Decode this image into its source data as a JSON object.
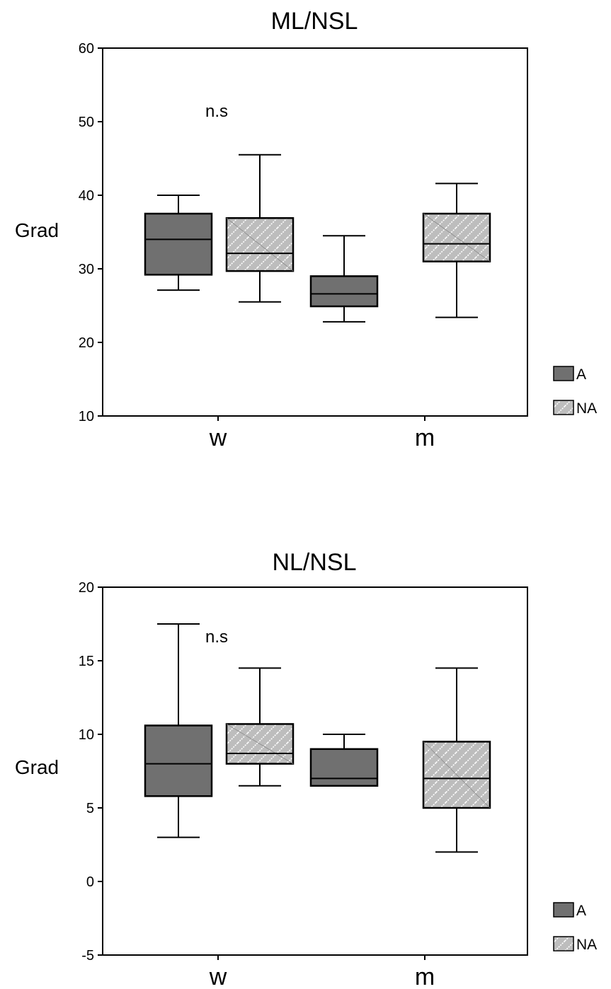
{
  "chart_data": [
    {
      "type": "box",
      "title": "ML/NSL",
      "ylabel": "Grad",
      "ylim": [
        10,
        60
      ],
      "yticks": [
        10,
        20,
        30,
        40,
        50,
        60
      ],
      "categories": [
        "w",
        "m"
      ],
      "annotation": "n.s",
      "legend": {
        "placement": "bottom-right",
        "entries": [
          "A",
          "NA"
        ]
      },
      "colors": {
        "A": "#707070",
        "NA": "#bdbdbd"
      },
      "series": [
        {
          "name": "A",
          "boxes": [
            {
              "min": 27.1,
              "q1": 29.2,
              "median": 34.0,
              "q3": 37.5,
              "max": 40.0
            },
            {
              "min": 22.8,
              "q1": 24.9,
              "median": 26.6,
              "q3": 29.0,
              "max": 34.5
            }
          ]
        },
        {
          "name": "NA",
          "boxes": [
            {
              "min": 25.5,
              "q1": 29.7,
              "median": 32.1,
              "q3": 36.9,
              "max": 45.5
            },
            {
              "min": 23.4,
              "q1": 31.0,
              "median": 33.4,
              "q3": 37.5,
              "max": 41.6
            }
          ]
        }
      ]
    },
    {
      "type": "box",
      "title": "NL/NSL",
      "ylabel": "Grad",
      "ylim": [
        -5,
        20
      ],
      "yticks": [
        -5,
        0,
        5,
        10,
        15,
        20
      ],
      "categories": [
        "w",
        "m"
      ],
      "annotation": "n.s",
      "legend": {
        "placement": "bottom-right",
        "entries": [
          "A",
          "NA"
        ]
      },
      "colors": {
        "A": "#707070",
        "NA": "#bdbdbd"
      },
      "series": [
        {
          "name": "A",
          "boxes": [
            {
              "min": 3.0,
              "q1": 5.8,
              "median": 8.0,
              "q3": 10.6,
              "max": 17.5
            },
            {
              "min": 6.5,
              "q1": 6.5,
              "median": 7.0,
              "q3": 9.0,
              "max": 10.0
            }
          ]
        },
        {
          "name": "NA",
          "boxes": [
            {
              "min": 6.5,
              "q1": 8.0,
              "median": 8.7,
              "q3": 10.7,
              "max": 14.5
            },
            {
              "min": 2.0,
              "q1": 5.0,
              "median": 7.0,
              "q3": 9.5,
              "max": 14.5
            }
          ]
        }
      ]
    }
  ]
}
